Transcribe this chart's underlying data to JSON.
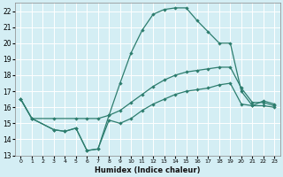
{
  "xlabel": "Humidex (Indice chaleur)",
  "bg_color": "#d4eef4",
  "grid_color": "#ffffff",
  "line_color": "#2d7d6e",
  "xlim": [
    -0.5,
    23.5
  ],
  "ylim": [
    13,
    22.5
  ],
  "xticks": [
    0,
    1,
    2,
    3,
    4,
    5,
    6,
    7,
    8,
    9,
    10,
    11,
    12,
    13,
    14,
    15,
    16,
    17,
    18,
    19,
    20,
    21,
    22,
    23
  ],
  "yticks": [
    13,
    14,
    15,
    16,
    17,
    18,
    19,
    20,
    21,
    22
  ],
  "series1_x": [
    0,
    1,
    3,
    4,
    5,
    6,
    7,
    8,
    9,
    10,
    11,
    12,
    13,
    14,
    15,
    16,
    17,
    18,
    19,
    20,
    21,
    22,
    23
  ],
  "series1_y": [
    16.5,
    15.3,
    14.6,
    14.5,
    14.7,
    13.3,
    13.4,
    15.5,
    17.5,
    19.4,
    20.8,
    21.8,
    22.1,
    22.2,
    22.2,
    21.4,
    20.7,
    20.0,
    20.0,
    17.0,
    16.1,
    16.4,
    16.2
  ],
  "series2_x": [
    0,
    1,
    3,
    5,
    6,
    7,
    8,
    9,
    10,
    11,
    12,
    13,
    14,
    15,
    16,
    17,
    18,
    19,
    20,
    21,
    22,
    23
  ],
  "series2_y": [
    16.5,
    15.3,
    15.3,
    15.3,
    15.3,
    15.3,
    15.5,
    15.8,
    16.3,
    16.8,
    17.3,
    17.7,
    18.0,
    18.2,
    18.3,
    18.4,
    18.5,
    18.5,
    17.2,
    16.3,
    16.3,
    16.1
  ],
  "series3_x": [
    0,
    1,
    3,
    4,
    5,
    6,
    7,
    8,
    9,
    10,
    11,
    12,
    13,
    14,
    15,
    16,
    17,
    18,
    19,
    20,
    21,
    22,
    23
  ],
  "series3_y": [
    16.5,
    15.3,
    14.6,
    14.5,
    14.7,
    13.3,
    13.4,
    15.2,
    15.0,
    15.3,
    15.8,
    16.2,
    16.5,
    16.8,
    17.0,
    17.1,
    17.2,
    17.4,
    17.5,
    16.2,
    16.1,
    16.1,
    16.0
  ]
}
